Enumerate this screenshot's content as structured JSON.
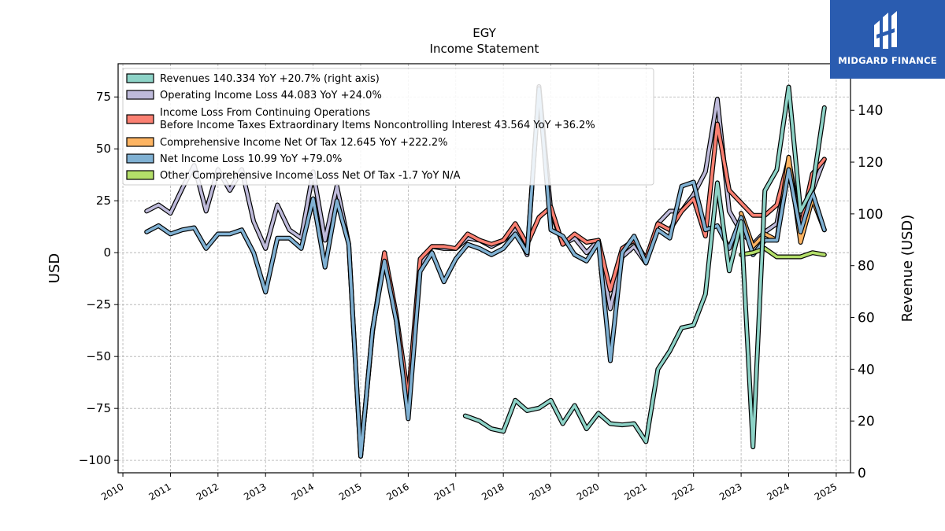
{
  "chart_data": {
    "type": "line",
    "title": "EGY",
    "subtitle": "Income Statement",
    "ylabel": "USD",
    "ylabel_right": "Revenue (USD)",
    "ylim": [
      -106,
      91
    ],
    "ylim_right": [
      0,
      158
    ],
    "xlim": [
      2009.9,
      2025.3
    ],
    "yticks": [
      -100,
      -75,
      -50,
      -25,
      0,
      25,
      50,
      75
    ],
    "yticks_right": [
      0,
      20,
      40,
      60,
      80,
      100,
      120,
      140
    ],
    "xticks": [
      "2010",
      "2011",
      "2012",
      "2013",
      "2014",
      "2015",
      "2016",
      "2017",
      "2018",
      "2019",
      "2020",
      "2021",
      "2022",
      "2023",
      "2024",
      "2025"
    ],
    "grid": true,
    "legend_position": "top-left",
    "series": [
      {
        "name": "Revenues",
        "legend": "Revenues  140.334 YoY +20.7% (right axis)",
        "axis": "right",
        "color": "#8dd3c7",
        "x": [
          2017.2,
          2017.5,
          2017.75,
          2018.0,
          2018.25,
          2018.5,
          2018.75,
          2019.0,
          2019.25,
          2019.5,
          2019.75,
          2020.0,
          2020.25,
          2020.5,
          2020.75,
          2021.0,
          2021.25,
          2021.5,
          2021.75,
          2022.0,
          2022.25,
          2022.5,
          2022.75,
          2023.0,
          2023.25,
          2023.5,
          2023.75,
          2024.0,
          2024.25,
          2024.5,
          2024.75
        ],
        "values": [
          22,
          20,
          17,
          16,
          28,
          24,
          25,
          28,
          19,
          26,
          17,
          23,
          19,
          18.5,
          19,
          12,
          40,
          47,
          56,
          57,
          69,
          112,
          78,
          97,
          10,
          109,
          117,
          149,
          101,
          110,
          141
        ]
      },
      {
        "name": "Operating Income Loss",
        "legend": "Operating Income Loss  44.083 YoY +24.0%",
        "axis": "left",
        "color": "#bebada",
        "x": [
          2010.5,
          2010.75,
          2011.0,
          2011.25,
          2011.5,
          2011.75,
          2012.0,
          2012.25,
          2012.5,
          2012.75,
          2013.0,
          2013.25,
          2013.5,
          2013.75,
          2014.0,
          2014.25,
          2014.5,
          2014.75,
          2015.0,
          2015.25,
          2015.5,
          2015.75,
          2016.0,
          2016.25,
          2016.5,
          2016.75,
          2017.0,
          2017.25,
          2017.5,
          2017.75,
          2018.0,
          2018.25,
          2018.5,
          2018.75,
          2019.0,
          2019.25,
          2019.5,
          2019.75,
          2020.0,
          2020.25,
          2020.5,
          2020.75,
          2021.0,
          2021.25,
          2021.5,
          2021.75,
          2022.0,
          2022.25,
          2022.5,
          2022.75,
          2023.0,
          2023.25,
          2023.5,
          2023.75,
          2024.0,
          2024.25,
          2024.5,
          2024.75
        ],
        "values": [
          20,
          23,
          19,
          31,
          42,
          20,
          40,
          30,
          40,
          15,
          2,
          23,
          11,
          7,
          39,
          6,
          32,
          4,
          -98,
          -37,
          -2,
          -33,
          -75,
          -6,
          3,
          2,
          2,
          7,
          6,
          3,
          6,
          11,
          -1,
          80,
          20,
          4,
          7,
          0,
          6,
          -27,
          -2,
          3,
          -5,
          14,
          20,
          20,
          28,
          39,
          74,
          20,
          10,
          4,
          10,
          14,
          42,
          10,
          30,
          45
        ]
      },
      {
        "name": "Income Loss From Continuing Operations Before Income Taxes Extraordinary Items Noncontrolling Interest",
        "legend_line1": "Income Loss From Continuing Operations",
        "legend_line2": "Before Income Taxes Extraordinary Items Noncontrolling Interest  43.564 YoY +36.2%",
        "axis": "left",
        "color": "#fb8072",
        "x": [
          2015.0,
          2015.25,
          2015.5,
          2015.75,
          2016.0,
          2016.25,
          2016.5,
          2016.75,
          2017.0,
          2017.25,
          2017.5,
          2017.75,
          2018.0,
          2018.25,
          2018.5,
          2018.75,
          2019.0,
          2019.25,
          2019.5,
          2019.75,
          2020.0,
          2020.25,
          2020.5,
          2020.75,
          2021.0,
          2021.25,
          2021.5,
          2021.75,
          2022.0,
          2022.25,
          2022.5,
          2022.75,
          2023.0,
          2023.25,
          2023.5,
          2023.75,
          2024.0,
          2024.25,
          2024.5,
          2024.75
        ],
        "values": [
          -98,
          -38,
          0,
          -30,
          -70,
          -3,
          3,
          3,
          2,
          9,
          6,
          4,
          6,
          14,
          4,
          17,
          22,
          4,
          9,
          5,
          6,
          -18,
          2,
          6,
          -3,
          14,
          11,
          20,
          26,
          8,
          62,
          30,
          24,
          18,
          18,
          23,
          45,
          12,
          38,
          45
        ]
      },
      {
        "name": "Comprehensive Income Net Of Tax",
        "legend": "Comprehensive Income Net Of Tax  12.645 YoY +222.2%",
        "axis": "left",
        "color": "#fdb462",
        "x": [
          2023.0,
          2023.25,
          2023.5,
          2023.75,
          2024.0,
          2024.25,
          2024.5,
          2024.75
        ],
        "values": [
          19,
          3,
          9,
          6,
          46,
          5,
          26,
          11
        ]
      },
      {
        "name": "Net Income Loss",
        "legend": "Net Income Loss  10.99 YoY +79.0%",
        "axis": "left",
        "color": "#80b1d3",
        "x": [
          2010.5,
          2010.75,
          2011.0,
          2011.25,
          2011.5,
          2011.75,
          2012.0,
          2012.25,
          2012.5,
          2012.75,
          2013.0,
          2013.25,
          2013.5,
          2013.75,
          2014.0,
          2014.25,
          2014.5,
          2014.75,
          2015.0,
          2015.25,
          2015.5,
          2015.75,
          2016.0,
          2016.25,
          2016.5,
          2016.75,
          2017.0,
          2017.25,
          2017.5,
          2017.75,
          2018.0,
          2018.25,
          2018.5,
          2018.75,
          2019.0,
          2019.25,
          2019.5,
          2019.75,
          2020.0,
          2020.25,
          2020.5,
          2020.75,
          2021.0,
          2021.25,
          2021.5,
          2021.75,
          2022.0,
          2022.25,
          2022.5,
          2022.75,
          2023.0,
          2023.25,
          2023.5,
          2023.75,
          2024.0,
          2024.25,
          2024.5,
          2024.75
        ],
        "values": [
          10,
          13,
          9,
          11,
          12,
          2,
          9,
          9,
          11,
          0,
          -19,
          7,
          7,
          2,
          26,
          -7,
          25,
          4,
          -98,
          -37,
          -4,
          -33,
          -80,
          -9,
          0,
          -14,
          -3,
          4,
          2,
          -1,
          2,
          9,
          0,
          79,
          11,
          8,
          -1,
          -4,
          5,
          -52,
          0,
          8,
          -5,
          11,
          7,
          32,
          34,
          11,
          13,
          2,
          17,
          -1,
          6,
          6,
          40,
          10,
          29,
          11
        ]
      },
      {
        "name": "Other Comprehensive Income Loss Net Of Tax",
        "legend": "Other Comprehensive Income Loss Net Of Tax  -1.7 YoY N/A",
        "axis": "left",
        "color": "#b3de69",
        "x": [
          2023.0,
          2023.25,
          2023.5,
          2023.75,
          2024.0,
          2024.25,
          2024.5,
          2024.75
        ],
        "values": [
          -1,
          0,
          2,
          -2,
          -2,
          -2,
          0,
          -1
        ]
      }
    ]
  },
  "logo": {
    "text": "MIDGARD FINANCE",
    "color": "#2a5cb0"
  }
}
